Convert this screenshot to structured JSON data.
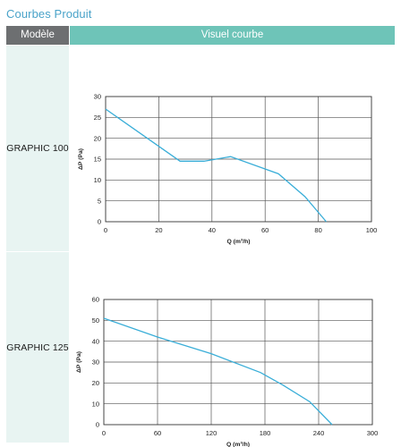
{
  "page": {
    "title": "Courbes Produit",
    "header": {
      "model_col": "Modèle",
      "curve_col": "Visuel courbe"
    }
  },
  "colors": {
    "title": "#4aa3c9",
    "header_model_bg": "#6d6f71",
    "header_curve_bg": "#6ec4b8",
    "model_cell_bg": "#e8f4f2",
    "curve": "#3aaed8"
  },
  "rows": [
    {
      "model": "GRAPHIC 100"
    },
    {
      "model": "GRAPHIC 125"
    }
  ],
  "chart_data": [
    {
      "type": "line",
      "xlabel": "Q (m³/h)",
      "ylabel": "ΔP (Pa)",
      "xlim": [
        0,
        100
      ],
      "ylim": [
        0,
        30
      ],
      "xticks": [
        0,
        20,
        40,
        60,
        80,
        100
      ],
      "yticks": [
        0,
        5,
        10,
        15,
        20,
        25,
        30
      ],
      "grid": true,
      "series": [
        {
          "x": [
            0,
            28,
            37,
            47,
            65,
            75,
            83
          ],
          "y": [
            27,
            14.5,
            14.5,
            15.6,
            11.5,
            6,
            0
          ]
        }
      ]
    },
    {
      "type": "line",
      "xlabel": "Q (m³/h)",
      "ylabel": "ΔP (Pa)",
      "xlim": [
        0,
        300
      ],
      "ylim": [
        0,
        60
      ],
      "xticks": [
        0,
        60,
        120,
        180,
        240,
        300
      ],
      "yticks": [
        0,
        10,
        20,
        30,
        40,
        50,
        60
      ],
      "grid": true,
      "series": [
        {
          "x": [
            0,
            60,
            120,
            175,
            200,
            230,
            255
          ],
          "y": [
            51,
            42,
            34,
            25,
            19,
            11,
            0
          ]
        }
      ]
    }
  ]
}
